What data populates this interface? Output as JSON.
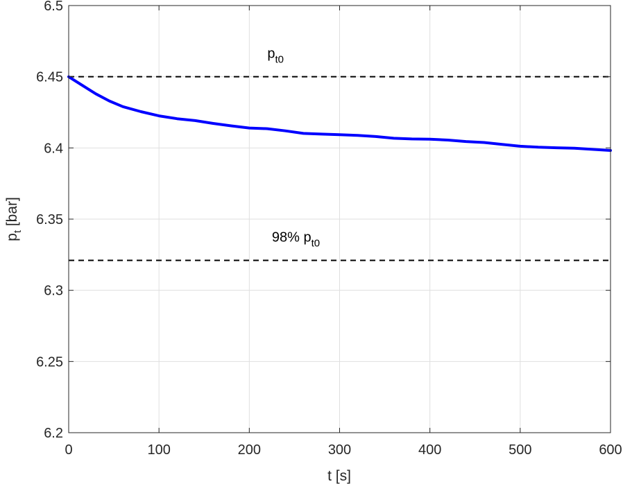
{
  "chart_data": {
    "type": "line",
    "title": "",
    "xlabel": "t [s]",
    "ylabel_main": "p",
    "ylabel_sub": "t",
    "ylabel_rest": " [bar]",
    "xlim": [
      0,
      600
    ],
    "ylim": [
      6.2,
      6.5
    ],
    "grid": true,
    "x_ticks": [
      "0",
      "100",
      "200",
      "300",
      "400",
      "500",
      "600"
    ],
    "y_ticks": [
      "6.2",
      "6.25",
      "6.3",
      "6.35",
      "6.4",
      "6.45",
      "6.5"
    ],
    "series": [
      {
        "color": "#0000ff",
        "x": [
          0,
          15,
          30,
          45,
          60,
          80,
          100,
          120,
          140,
          160,
          180,
          200,
          220,
          240,
          260,
          280,
          300,
          320,
          340,
          360,
          380,
          400,
          420,
          440,
          460,
          480,
          500,
          520,
          540,
          560,
          580,
          600
        ],
        "y": [
          6.45,
          6.444,
          6.438,
          6.433,
          6.429,
          6.4255,
          6.4225,
          6.4205,
          6.4192,
          6.4172,
          6.4155,
          6.414,
          6.4135,
          6.412,
          6.4102,
          6.4097,
          6.4093,
          6.4088,
          6.408,
          6.4068,
          6.4063,
          6.4061,
          6.4055,
          6.4045,
          6.4038,
          6.4025,
          6.4012,
          6.4005,
          6.4001,
          6.3998,
          6.399,
          6.3982
        ]
      }
    ],
    "reference_lines": [
      {
        "y": 6.45,
        "label_main": "p",
        "label_sub": "t0",
        "label_prefix": "",
        "label_x": 220,
        "style": "dashed",
        "color": "#000000"
      },
      {
        "y": 6.321,
        "label_main": "p",
        "label_sub": "t0",
        "label_prefix": "98% ",
        "label_x": 225,
        "style": "dashed",
        "color": "#000000"
      }
    ]
  }
}
